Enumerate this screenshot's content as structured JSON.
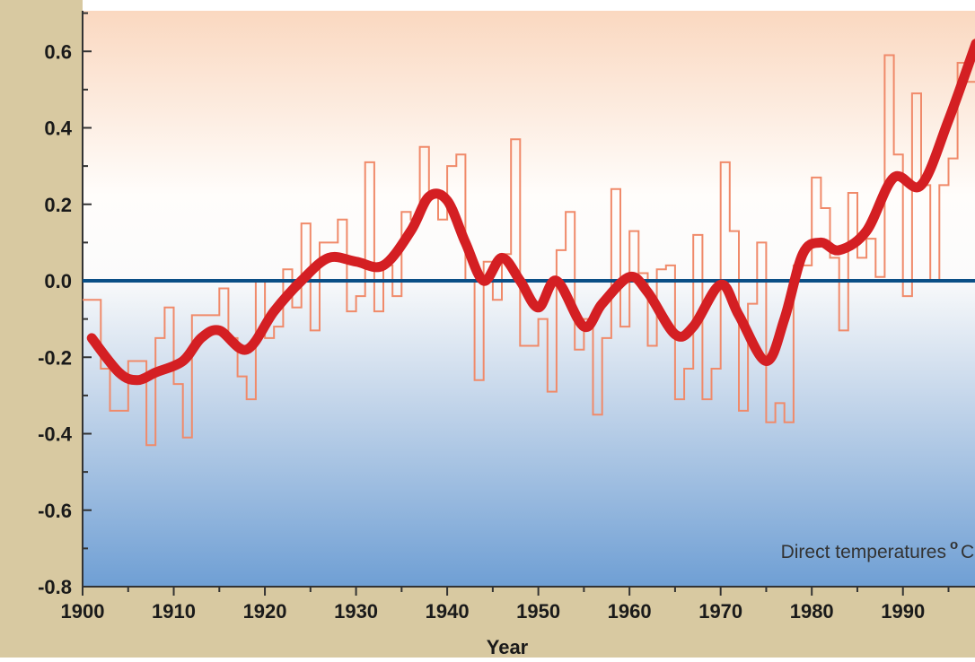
{
  "chart_data": {
    "type": "line",
    "title": "",
    "xlabel": "Year",
    "ylabel": "",
    "xlim": [
      1900,
      1999
    ],
    "ylim": [
      -0.8,
      0.7
    ],
    "x_ticks": [
      1900,
      1910,
      1920,
      1930,
      1940,
      1950,
      1960,
      1970,
      1980,
      1990
    ],
    "x_tick_labels": [
      "1900",
      "1910",
      "1920",
      "1930",
      "1940",
      "1950",
      "1960",
      "1970",
      "1980",
      "1990"
    ],
    "y_ticks": [
      -0.8,
      -0.6,
      -0.4,
      -0.2,
      0.0,
      0.2,
      0.4,
      0.6
    ],
    "y_tick_labels": [
      "-0.8",
      "-0.6",
      "-0.4",
      "-0.2",
      "0.0",
      "0.2",
      "0.4",
      "0.6"
    ],
    "reference_line": 0.0,
    "grid": false,
    "annotation": {
      "text": "Direct temperatures",
      "degree": "o",
      "unit": "C"
    },
    "series": [
      {
        "kind": "annual-step",
        "years": [
          1900,
          1901,
          1902,
          1903,
          1904,
          1905,
          1906,
          1907,
          1908,
          1909,
          1910,
          1911,
          1912,
          1913,
          1914,
          1915,
          1916,
          1917,
          1918,
          1919,
          1920,
          1921,
          1922,
          1923,
          1924,
          1925,
          1926,
          1927,
          1928,
          1929,
          1930,
          1931,
          1932,
          1933,
          1934,
          1935,
          1936,
          1937,
          1938,
          1939,
          1940,
          1941,
          1942,
          1943,
          1944,
          1945,
          1946,
          1947,
          1948,
          1949,
          1950,
          1951,
          1952,
          1953,
          1954,
          1955,
          1956,
          1957,
          1958,
          1959,
          1960,
          1961,
          1962,
          1963,
          1964,
          1965,
          1966,
          1967,
          1968,
          1969,
          1970,
          1971,
          1972,
          1973,
          1974,
          1975,
          1976,
          1977,
          1978,
          1979,
          1980,
          1981,
          1982,
          1983,
          1984,
          1985,
          1986,
          1987,
          1988,
          1989,
          1990,
          1991,
          1992,
          1993,
          1994,
          1995,
          1996,
          1997,
          1998
        ],
        "values": [
          -0.05,
          -0.05,
          -0.23,
          -0.34,
          -0.34,
          -0.21,
          -0.21,
          -0.43,
          -0.15,
          -0.07,
          -0.27,
          -0.41,
          -0.09,
          -0.09,
          -0.09,
          -0.02,
          -0.15,
          -0.25,
          -0.31,
          0.0,
          -0.15,
          -0.12,
          0.03,
          -0.07,
          0.15,
          -0.13,
          0.1,
          0.1,
          0.16,
          -0.08,
          -0.04,
          0.31,
          -0.08,
          0.04,
          -0.04,
          0.18,
          0.16,
          0.35,
          0.22,
          0.16,
          0.3,
          0.33,
          0.0,
          -0.26,
          0.05,
          -0.05,
          0.07,
          0.37,
          -0.17,
          -0.17,
          -0.1,
          -0.29,
          0.08,
          0.18,
          -0.18,
          -0.1,
          -0.35,
          -0.15,
          0.24,
          -0.12,
          0.13,
          0.02,
          -0.17,
          0.03,
          0.04,
          -0.31,
          -0.23,
          0.12,
          -0.31,
          -0.23,
          0.31,
          0.13,
          -0.34,
          -0.06,
          0.1,
          -0.37,
          -0.32,
          -0.37,
          0.04,
          0.04,
          0.27,
          0.19,
          0.06,
          -0.13,
          0.23,
          0.06,
          0.11,
          0.01,
          0.59,
          0.33,
          -0.04,
          0.49,
          0.25,
          0.0,
          0.25,
          0.32,
          0.57,
          0.52,
          0.7
        ]
      },
      {
        "kind": "smoothed",
        "x": [
          1901,
          1904,
          1906,
          1908,
          1911,
          1913,
          1915,
          1918,
          1921,
          1924,
          1927,
          1930,
          1933,
          1936,
          1938,
          1940,
          1942,
          1944,
          1946,
          1948,
          1950,
          1952,
          1955,
          1957,
          1960,
          1962,
          1965,
          1967,
          1970,
          1972,
          1975,
          1977,
          1979,
          1981,
          1983,
          1986,
          1989,
          1992,
          1995,
          1998
        ],
        "y": [
          -0.15,
          -0.24,
          -0.26,
          -0.24,
          -0.21,
          -0.15,
          -0.13,
          -0.18,
          -0.08,
          0.0,
          0.06,
          0.05,
          0.04,
          0.13,
          0.22,
          0.21,
          0.1,
          0.0,
          0.06,
          0.0,
          -0.07,
          0.0,
          -0.12,
          -0.06,
          0.01,
          -0.03,
          -0.14,
          -0.12,
          -0.01,
          -0.09,
          -0.21,
          -0.1,
          0.07,
          0.1,
          0.08,
          0.13,
          0.27,
          0.25,
          0.42,
          0.62
        ]
      }
    ],
    "colors": {
      "annual": "#f08a6a",
      "smoothed": "#d41f23",
      "zero_line": "#0a4f86",
      "bg_top": "#fad8c0",
      "bg_mid": "#fbfbfb",
      "bg_bottom": "#6f9fd4",
      "frame": "#d8c9a1"
    }
  }
}
